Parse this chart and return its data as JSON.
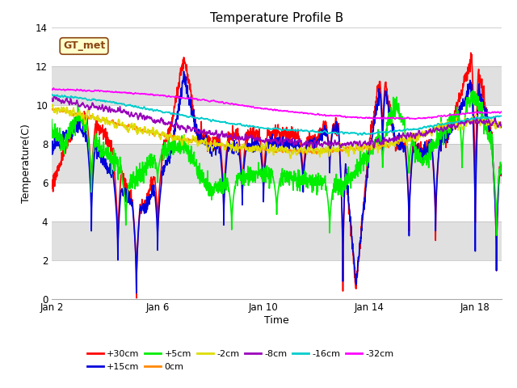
{
  "title": "Temperature Profile B",
  "xlabel": "Time",
  "ylabel": "Temperature(C)",
  "annotation": "GT_met",
  "ylim": [
    0,
    14
  ],
  "xlim": [
    0,
    17
  ],
  "xtick_positions": [
    0,
    4,
    8,
    12,
    16
  ],
  "xtick_labels": [
    "Jan 2",
    "Jan 6",
    "Jan 10",
    "Jan 14",
    "Jan 18"
  ],
  "ytick_positions": [
    0,
    2,
    4,
    6,
    8,
    10,
    12,
    14
  ],
  "background_color": "#ffffff",
  "series": [
    {
      "label": "+30cm",
      "color": "#ff0000",
      "lw": 1.2
    },
    {
      "label": "+15cm",
      "color": "#0000dd",
      "lw": 1.2
    },
    {
      "label": "+5cm",
      "color": "#00ee00",
      "lw": 1.2
    },
    {
      "label": "0cm",
      "color": "#ff8800",
      "lw": 1.2
    },
    {
      "label": "-2cm",
      "color": "#dddd00",
      "lw": 1.2
    },
    {
      "label": "-8cm",
      "color": "#9900bb",
      "lw": 1.2
    },
    {
      "label": "-16cm",
      "color": "#00cccc",
      "lw": 1.2
    },
    {
      "label": "-32cm",
      "color": "#ff00ff",
      "lw": 1.2
    }
  ],
  "title_fontsize": 11,
  "axis_fontsize": 9,
  "tick_fontsize": 8.5
}
